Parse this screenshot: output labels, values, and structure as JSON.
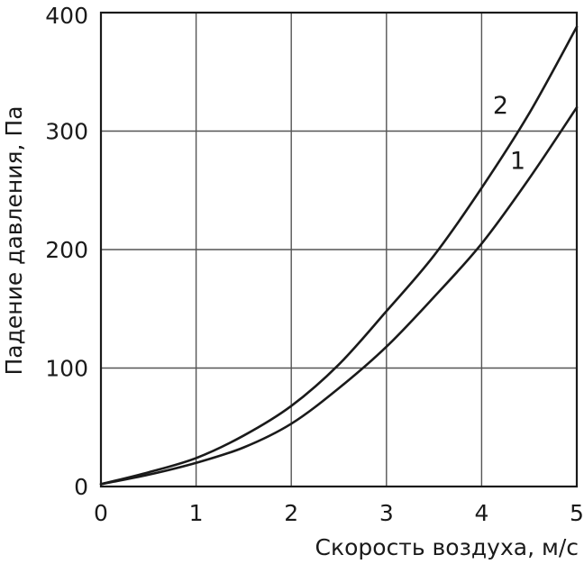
{
  "chart_data": {
    "type": "line",
    "title": "",
    "xlabel": "Скорость воздуха, м/с",
    "ylabel": "Падение давления, Па",
    "xlim": [
      0,
      5
    ],
    "ylim": [
      0,
      400
    ],
    "xticks": [
      "0",
      "1",
      "2",
      "3",
      "4",
      "5"
    ],
    "yticks": [
      "0",
      "100",
      "200",
      "300",
      "400"
    ],
    "grid": true,
    "legend": "none",
    "series": [
      {
        "name": "1",
        "x": [
          0,
          0.5,
          1,
          1.5,
          2,
          2.5,
          3,
          3.5,
          4,
          4.5,
          5
        ],
        "y": [
          2,
          10,
          20,
          33,
          53,
          83,
          118,
          160,
          205,
          260,
          320
        ]
      },
      {
        "name": "2",
        "x": [
          0,
          0.5,
          1,
          1.5,
          2,
          2.5,
          3,
          3.5,
          4,
          4.5,
          5
        ],
        "y": [
          2,
          12,
          24,
          43,
          68,
          103,
          148,
          195,
          252,
          315,
          388
        ]
      }
    ],
    "series_label_positions": [
      {
        "series": "1",
        "x": 4.38,
        "y": 268
      },
      {
        "series": "2",
        "x": 4.2,
        "y": 315
      }
    ],
    "colors": {
      "line": "#1a1a1a",
      "grid": "#555555",
      "background": "#ffffff"
    }
  }
}
